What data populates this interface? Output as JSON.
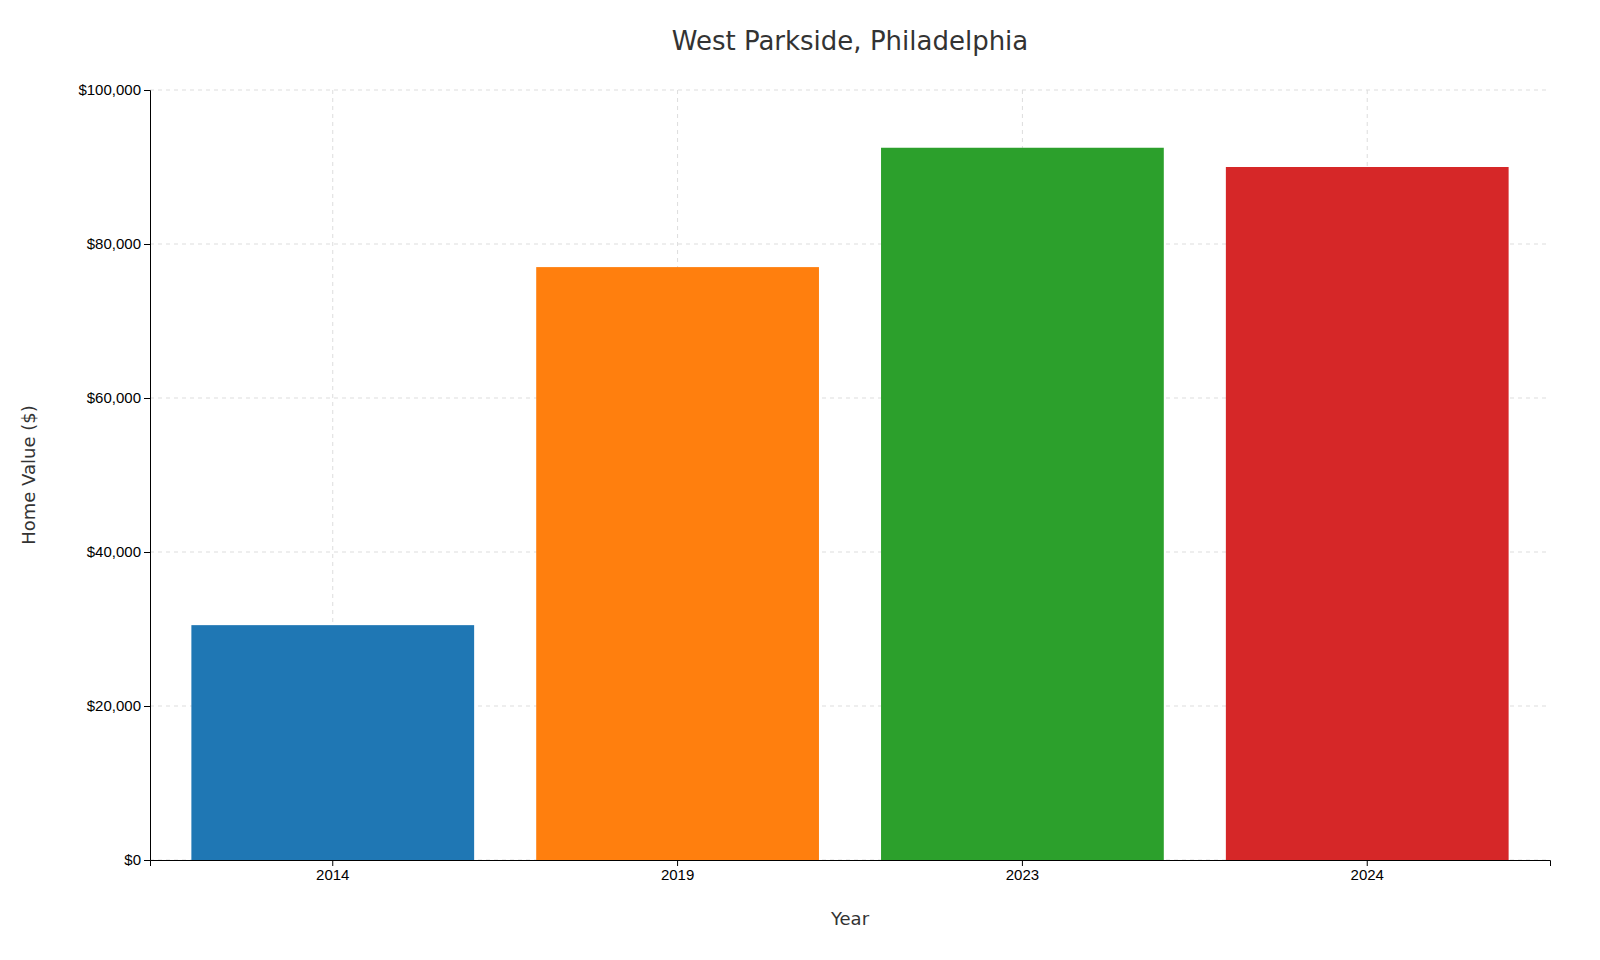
{
  "chart_data": {
    "type": "bar",
    "title": "West Parkside, Philadelphia",
    "x_label": "Year",
    "y_label": "Home Value ($)",
    "categories": [
      "2014",
      "2019",
      "2023",
      "2024"
    ],
    "values": [
      30500,
      77000,
      92500,
      90000
    ],
    "colors": [
      "#1f77b4",
      "#ff7f0e",
      "#2ca02c",
      "#d62728"
    ],
    "ylim": [
      0,
      100000
    ],
    "yticks": [
      {
        "value": 0,
        "label": "$0"
      },
      {
        "value": 20000,
        "label": "$20,000"
      },
      {
        "value": 40000,
        "label": "$40,000"
      },
      {
        "value": 60000,
        "label": "$60,000"
      },
      {
        "value": 80000,
        "label": "$80,000"
      },
      {
        "value": 100000,
        "label": "$100,000"
      }
    ],
    "grid": true
  }
}
